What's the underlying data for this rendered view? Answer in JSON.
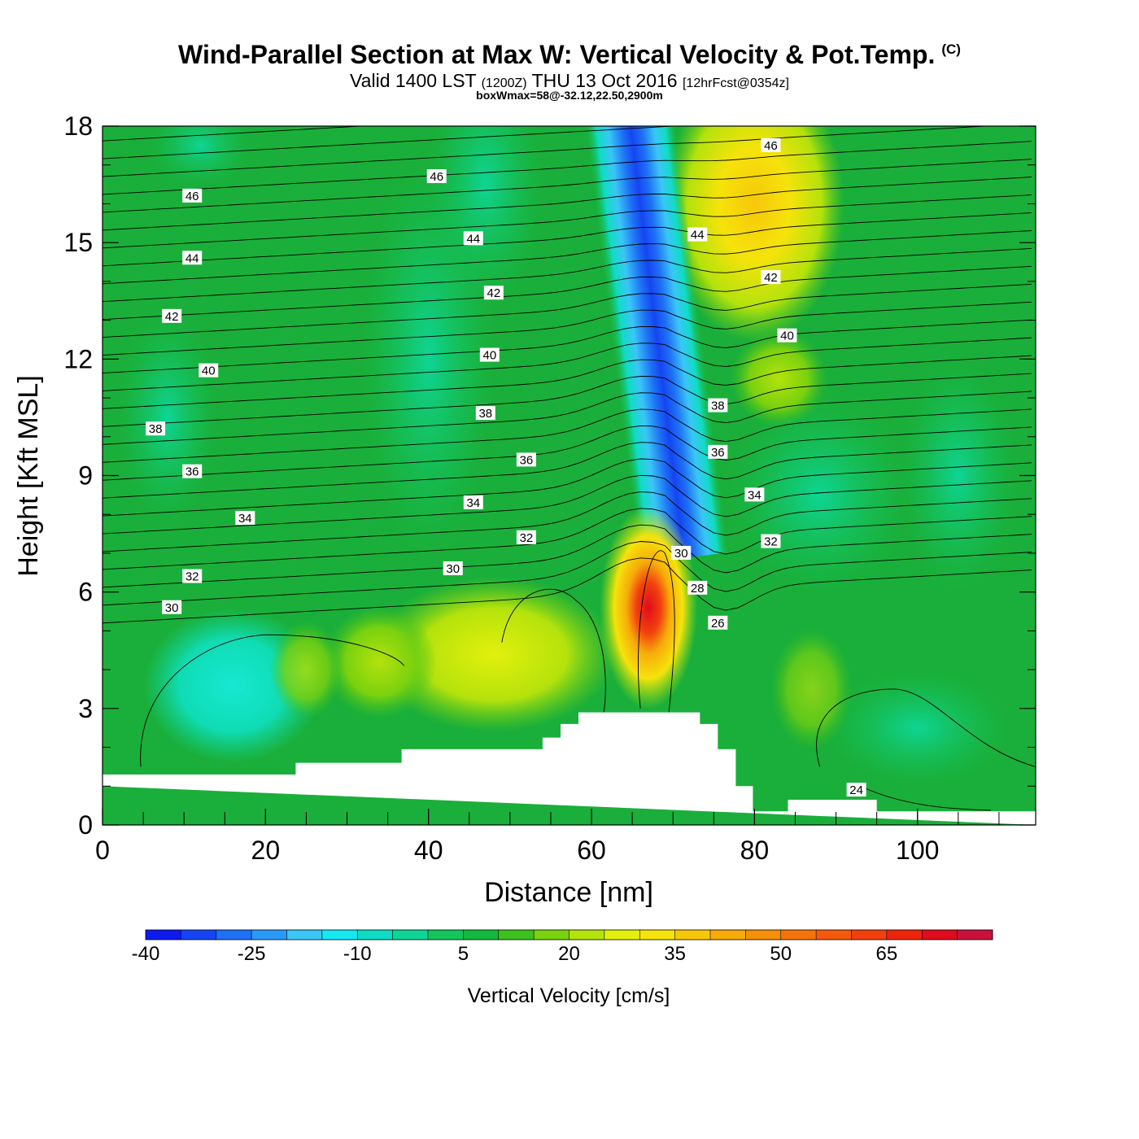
{
  "header": {
    "title": "Wind-Parallel Section at Max W: Vertical Velocity & Pot.Temp.",
    "copyright": "(C)",
    "subtitle_a": "Valid 1400 LST",
    "subtitle_b": "(1200Z)",
    "subtitle_c": "THU 13 Oct 2016",
    "subtitle_d": "[12hrFcst@0354z]",
    "box_info": "boxWmax=58@-32.12,22.50,2900m"
  },
  "colors": {
    "background_field": "#1aaf3a",
    "terrain": "#ffffff",
    "contour": "#000000"
  },
  "chart_data": {
    "type": "heatmap",
    "xlabel": "Distance [nm]",
    "ylabel": "Height [Kft MSL]",
    "xlim": [
      0,
      114.5
    ],
    "ylim": [
      0,
      18
    ],
    "xticks": [
      "0",
      "20",
      "40",
      "60",
      "80",
      "100"
    ],
    "yticks": [
      "0",
      "3",
      "6",
      "9",
      "12",
      "15",
      "18"
    ],
    "colorbar": {
      "title": "Vertical Velocity [cm/s]",
      "tick_labels": [
        "-40",
        "-25",
        "-10",
        "5",
        "20",
        "35",
        "50",
        "65"
      ],
      "levels": [
        -40,
        -35,
        -30,
        -25,
        -20,
        -15,
        -10,
        -5,
        0,
        5,
        10,
        15,
        20,
        25,
        30,
        35,
        40,
        45,
        50,
        55,
        60,
        65,
        70,
        75
      ],
      "colors": [
        "#0d1aee",
        "#1545f2",
        "#1e70f5",
        "#2a99f6",
        "#3ac6f7",
        "#16e8f2",
        "#10dcc4",
        "#0ed595",
        "#13c55c",
        "#14b83e",
        "#3ec01e",
        "#7ad10f",
        "#b4e20c",
        "#e3f00d",
        "#f5e30b",
        "#f7c70b",
        "#f6ab0a",
        "#f5900b",
        "#f4740b",
        "#f35a0c",
        "#f1400e",
        "#ee230e",
        "#e00b1c",
        "#c8123c"
      ]
    },
    "vertical_velocity_features": [
      {
        "label": "updraft core",
        "x": 67.0,
        "y": 5.8,
        "max": 58
      },
      {
        "label": "downdraft band",
        "x_bottom": 71,
        "x_top": 65,
        "y_range": [
          7.5,
          18
        ],
        "min": -35
      },
      {
        "label": "upper updraft",
        "x": 80,
        "y": 16,
        "max": 30
      }
    ],
    "theta_labels": [
      {
        "text": "46",
        "x": 11,
        "y": 16.2
      },
      {
        "text": "44",
        "x": 11,
        "y": 14.6
      },
      {
        "text": "42",
        "x": 8.5,
        "y": 13.1
      },
      {
        "text": "40",
        "x": 13,
        "y": 11.7
      },
      {
        "text": "38",
        "x": 6.5,
        "y": 10.2
      },
      {
        "text": "36",
        "x": 11,
        "y": 9.1
      },
      {
        "text": "34",
        "x": 17.5,
        "y": 7.9
      },
      {
        "text": "32",
        "x": 11,
        "y": 6.4
      },
      {
        "text": "30",
        "x": 8.5,
        "y": 5.6
      },
      {
        "text": "46",
        "x": 41,
        "y": 16.7
      },
      {
        "text": "44",
        "x": 45.5,
        "y": 15.1
      },
      {
        "text": "42",
        "x": 48,
        "y": 13.7
      },
      {
        "text": "40",
        "x": 47.5,
        "y": 12.1
      },
      {
        "text": "38",
        "x": 47,
        "y": 10.6
      },
      {
        "text": "36",
        "x": 52,
        "y": 9.4
      },
      {
        "text": "34",
        "x": 45.5,
        "y": 8.3
      },
      {
        "text": "32",
        "x": 52,
        "y": 7.4
      },
      {
        "text": "30",
        "x": 43,
        "y": 6.6
      },
      {
        "text": "46",
        "x": 82,
        "y": 17.5
      },
      {
        "text": "44",
        "x": 73,
        "y": 15.2
      },
      {
        "text": "42",
        "x": 82,
        "y": 14.1
      },
      {
        "text": "40",
        "x": 84,
        "y": 12.6
      },
      {
        "text": "38",
        "x": 75.5,
        "y": 10.8
      },
      {
        "text": "36",
        "x": 75.5,
        "y": 9.6
      },
      {
        "text": "34",
        "x": 80,
        "y": 8.5
      },
      {
        "text": "32",
        "x": 82,
        "y": 7.3
      },
      {
        "text": "30",
        "x": 71,
        "y": 7.0
      },
      {
        "text": "28",
        "x": 73,
        "y": 6.1
      },
      {
        "text": "26",
        "x": 75.5,
        "y": 5.2
      },
      {
        "text": "24",
        "x": 92.5,
        "y": 0.9
      }
    ],
    "terrain": [
      [
        0,
        1.0
      ],
      [
        0,
        1.3
      ],
      [
        23.7,
        1.3
      ],
      [
        23.7,
        1.6
      ],
      [
        36.7,
        1.6
      ],
      [
        36.7,
        1.95
      ],
      [
        54,
        1.95
      ],
      [
        54,
        2.25
      ],
      [
        56.2,
        2.25
      ],
      [
        56.2,
        2.6
      ],
      [
        58.4,
        2.6
      ],
      [
        58.4,
        2.9
      ],
      [
        73.3,
        2.9
      ],
      [
        73.3,
        2.6
      ],
      [
        75.5,
        2.6
      ],
      [
        75.5,
        1.95
      ],
      [
        77.7,
        1.95
      ],
      [
        77.7,
        1.0
      ],
      [
        79.8,
        1.0
      ],
      [
        79.8,
        0.35
      ],
      [
        84.1,
        0.35
      ],
      [
        84.1,
        0.65
      ],
      [
        95,
        0.65
      ],
      [
        95,
        0.35
      ],
      [
        114.5,
        0.35
      ],
      [
        114.5,
        0
      ]
    ]
  }
}
